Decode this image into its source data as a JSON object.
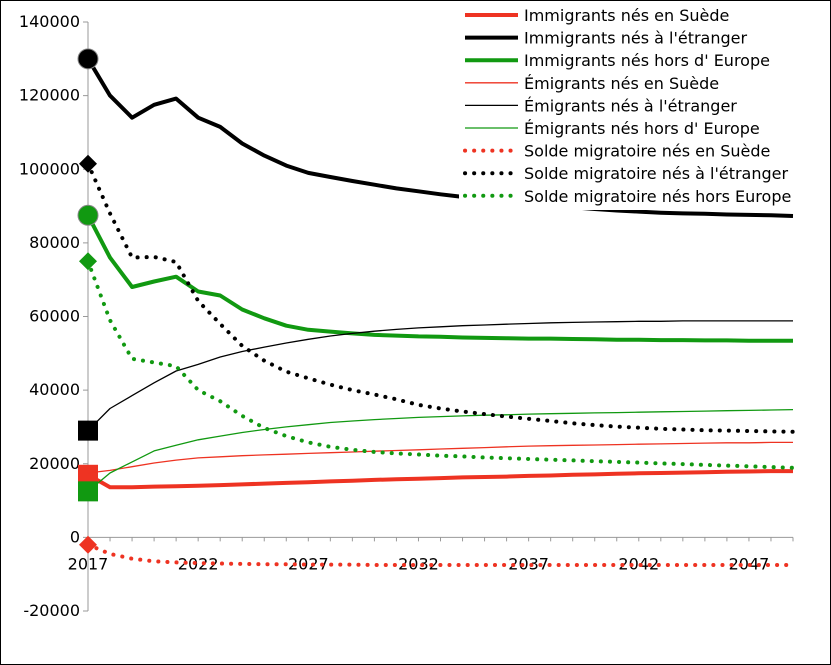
{
  "chart_data": {
    "type": "line",
    "title": "",
    "xlabel": "",
    "ylabel": "",
    "x": [
      2017,
      2018,
      2019,
      2020,
      2021,
      2022,
      2023,
      2024,
      2025,
      2026,
      2027,
      2028,
      2029,
      2030,
      2031,
      2032,
      2033,
      2034,
      2035,
      2036,
      2037,
      2038,
      2039,
      2040,
      2041,
      2042,
      2043,
      2044,
      2045,
      2046,
      2047,
      2048,
      2049
    ],
    "xlim": [
      2017,
      2049
    ],
    "ylim": [
      -20000,
      140000
    ],
    "x_tick_labels": [
      "2017",
      "2022",
      "2027",
      "2032",
      "2037",
      "2042",
      "2047"
    ],
    "y_tick_labels": [
      "-20000",
      "0",
      "20000",
      "40000",
      "60000",
      "80000",
      "100000",
      "120000",
      "140000"
    ],
    "grid": false,
    "legend_position": "top-right",
    "series": [
      {
        "name": "Immigrants nés en Suède",
        "color": "#ee3322",
        "style": "solid-thick",
        "marker": "square",
        "values": [
          17000,
          13600,
          13600,
          13800,
          13900,
          14000,
          14200,
          14400,
          14600,
          14800,
          15000,
          15200,
          15400,
          15600,
          15800,
          15900,
          16100,
          16300,
          16400,
          16500,
          16700,
          16800,
          17000,
          17100,
          17300,
          17400,
          17500,
          17600,
          17700,
          17800,
          17900,
          18000,
          18000
        ]
      },
      {
        "name": "Immigrants nés à l'étranger",
        "color": "#000000",
        "style": "solid-thick",
        "marker": "circle",
        "values": [
          130000,
          120000,
          114000,
          117500,
          119200,
          114000,
          111500,
          107000,
          103700,
          101000,
          99000,
          97900,
          96800,
          95800,
          94800,
          94000,
          93200,
          92500,
          91900,
          91200,
          90600,
          90100,
          89700,
          89200,
          88800,
          88500,
          88200,
          88000,
          87900,
          87700,
          87600,
          87500,
          87300
        ]
      },
      {
        "name": "Immigrants nés hors d' Europe",
        "color": "#119911",
        "style": "solid-thick",
        "marker": "circle",
        "values": [
          87500,
          76000,
          68000,
          69500,
          70800,
          66800,
          65700,
          61900,
          59500,
          57500,
          56400,
          55900,
          55400,
          55000,
          54800,
          54600,
          54500,
          54300,
          54200,
          54100,
          54000,
          54000,
          53900,
          53800,
          53700,
          53700,
          53600,
          53600,
          53500,
          53500,
          53400,
          53400,
          53400
        ]
      },
      {
        "name": "Émigrants nés en Suède",
        "color": "#ee3322",
        "style": "solid-thin",
        "marker": "none",
        "values": [
          17500,
          18200,
          19200,
          20200,
          21000,
          21600,
          21900,
          22200,
          22400,
          22600,
          22800,
          23000,
          23200,
          23400,
          23600,
          23800,
          24000,
          24200,
          24400,
          24600,
          24800,
          24900,
          25000,
          25100,
          25200,
          25300,
          25400,
          25500,
          25600,
          25700,
          25700,
          25800,
          25800
        ]
      },
      {
        "name": "Émigrants nés à l'étranger",
        "color": "#000000",
        "style": "solid-thin",
        "marker": "square",
        "values": [
          29000,
          35000,
          38500,
          42000,
          45200,
          47000,
          49000,
          50500,
          51700,
          52800,
          53800,
          54700,
          55400,
          56000,
          56500,
          56900,
          57200,
          57500,
          57700,
          57900,
          58100,
          58300,
          58400,
          58500,
          58600,
          58700,
          58700,
          58800,
          58800,
          58800,
          58800,
          58800,
          58800
        ]
      },
      {
        "name": "Émigrants nés hors d' Europe",
        "color": "#119911",
        "style": "solid-thin",
        "marker": "square",
        "values": [
          12500,
          17500,
          20500,
          23500,
          25000,
          26500,
          27500,
          28500,
          29300,
          30000,
          30600,
          31200,
          31600,
          32000,
          32300,
          32600,
          32800,
          33000,
          33200,
          33300,
          33500,
          33600,
          33700,
          33800,
          33900,
          34000,
          34100,
          34200,
          34300,
          34400,
          34500,
          34600,
          34700
        ]
      },
      {
        "name": "Solde migratoire nés en Suède",
        "color": "#ee3322",
        "style": "dotted",
        "marker": "diamond",
        "values": [
          -2000,
          -4500,
          -5800,
          -6500,
          -6800,
          -7000,
          -7100,
          -7200,
          -7300,
          -7300,
          -7400,
          -7400,
          -7400,
          -7500,
          -7500,
          -7500,
          -7500,
          -7500,
          -7500,
          -7500,
          -7500,
          -7500,
          -7500,
          -7500,
          -7500,
          -7500,
          -7500,
          -7500,
          -7500,
          -7500,
          -7500,
          -7500,
          -7500
        ]
      },
      {
        "name": "Solde migratoire nés à l'étranger",
        "color": "#000000",
        "style": "dotted",
        "marker": "diamond",
        "values": [
          101500,
          88000,
          76000,
          76200,
          74800,
          64200,
          58000,
          52000,
          48000,
          45000,
          43200,
          41500,
          40000,
          38800,
          37500,
          36000,
          35000,
          34200,
          33500,
          32800,
          32200,
          31600,
          31000,
          30500,
          30100,
          29800,
          29500,
          29300,
          29100,
          29000,
          28900,
          28800,
          28700
        ]
      },
      {
        "name": "Solde migratoire nés hors Europe",
        "color": "#119911",
        "style": "dotted",
        "marker": "diamond",
        "values": [
          75000,
          59000,
          48500,
          47500,
          46500,
          40000,
          37000,
          33000,
          29700,
          27500,
          25800,
          24600,
          23800,
          23200,
          22800,
          22500,
          22200,
          22000,
          21700,
          21500,
          21300,
          21100,
          20900,
          20700,
          20500,
          20300,
          20100,
          19900,
          19700,
          19500,
          19300,
          19100,
          18900
        ]
      }
    ]
  }
}
